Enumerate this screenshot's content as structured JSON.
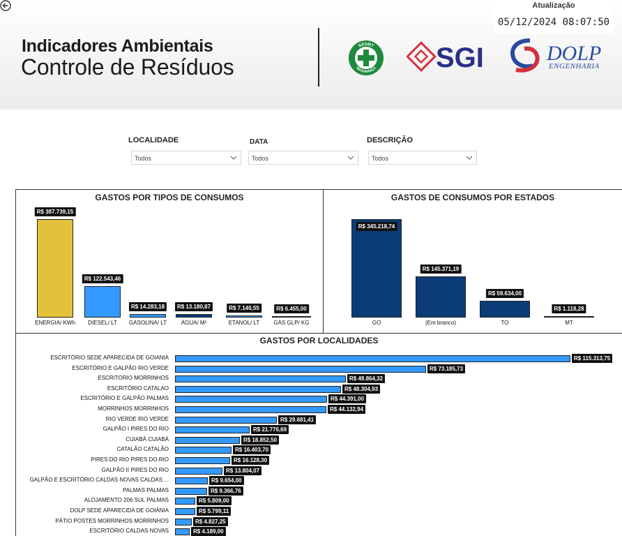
{
  "header": {
    "title_line1": "Indicadores Ambientais",
    "title_line2": "Controle de Resíduos",
    "update_label": "Atualização",
    "update_value": "05/12/2024 08:07:50",
    "logos": {
      "sesmt_top": "SESMT",
      "sesmt_bottom": "SEGURANÇA",
      "sgi": "SGI",
      "dolp_main": "DOLP",
      "dolp_sub": "ENGENHARIA"
    }
  },
  "filters": [
    {
      "label": "LOCALIDADE",
      "value": "Todos"
    },
    {
      "label": "DATA",
      "value": "Todos"
    },
    {
      "label": "DESCRIÇÃO",
      "value": "Todos"
    }
  ],
  "colors": {
    "yellow": "#e2c23a",
    "light_blue": "#3399ff",
    "dark_blue": "#0b3c77"
  },
  "chart_data": [
    {
      "type": "bar",
      "title": "GASTOS POR TIPOS DE CONSUMOS",
      "categories": [
        "ENERGIA/ KWh",
        "DIESEL/ LT",
        "GASOLINA/ LT",
        "ÁGUA/ M³",
        "ETANOL/ LT",
        "GÁS GLP/ KG"
      ],
      "values": [
        387739.15,
        122543.46,
        14283.18,
        13180.87,
        7140.55,
        6455.0
      ],
      "value_labels": [
        "R$ 387.739,15",
        "R$ 122.543,46",
        "R$ 14.283,18",
        "R$ 13.180,87",
        "R$ 7.140,55",
        "R$ 6.455,00"
      ],
      "bar_colors": [
        "#e2c23a",
        "#3399ff",
        "#3399ff",
        "#0b3c77",
        "#3399ff",
        "#111111"
      ]
    },
    {
      "type": "bar",
      "title": "GASTOS DE CONSUMOS POR ESTADOS",
      "categories": [
        "GO",
        "(Em branco)",
        "TO",
        "MT"
      ],
      "values": [
        345218.74,
        145371.19,
        59634.0,
        1118.28
      ],
      "value_labels": [
        "R$ 345.218,74",
        "R$ 145.371,19",
        "R$ 59.634,00",
        "R$ 1.118,28"
      ]
    },
    {
      "type": "bar",
      "orientation": "horizontal",
      "title": "GASTOS POR LOCALIDADES",
      "categories": [
        "ESCRITÓRIO SEDE APARECIDA DE GOIANIA",
        "ESCRITÓRIO E GALPÃO RIO VERDE",
        "ESCRITORIO MORRINHOS",
        "ESCRITÓRIO CATALAO",
        "ESCRITÓRIO E GALPÃO PALMAS",
        "MORRINHOS MORRINHOS",
        "RIO VERDE RIO VERDE",
        "GALPÃO I PIRES DO RIO",
        "CUIABÁ CUIABÁ",
        "CATALÃO CATALÃO",
        "PIRES DO RIO PIRES DO RIO",
        "GALPÃO II PIRES DO RIO",
        "GALPÃO E ESCRITÓRIO CALDAS NOVAS CALDAS ...",
        "PALMAS PALMAS",
        "ALOJAMENTO 206 SUL PALMAS",
        "DOLP SEDE APARECIDA DE GOIÂNIA",
        "PÁTIO POSTES MORRINHOS MORRINHOS",
        "ESCRITÓRIO CALDAS NOVAS"
      ],
      "values": [
        115313.75,
        73185.73,
        49864.32,
        48304.93,
        44391.0,
        44132.94,
        29681.41,
        21776.69,
        18852.5,
        16403.7,
        16128.3,
        13804.07,
        9654.0,
        9366.76,
        5809.0,
        5799.11,
        4827.25,
        4189.0
      ],
      "value_labels": [
        "R$ 115.313,75",
        "R$ 73.185,73",
        "R$ 49.864,32",
        "R$ 48.304,93",
        "R$ 44.391,00",
        "R$ 44.132,94",
        "R$ 29.681,41",
        "R$ 21.776,69",
        "R$ 18.852,50",
        "R$ 16.403,70",
        "R$ 16.128,30",
        "R$ 13.804,07",
        "R$ 9.654,00",
        "R$ 9.366,76",
        "R$ 5.809,00",
        "R$ 5.799,11",
        "R$ 4.827,25",
        "R$ 4.189,00"
      ]
    }
  ]
}
